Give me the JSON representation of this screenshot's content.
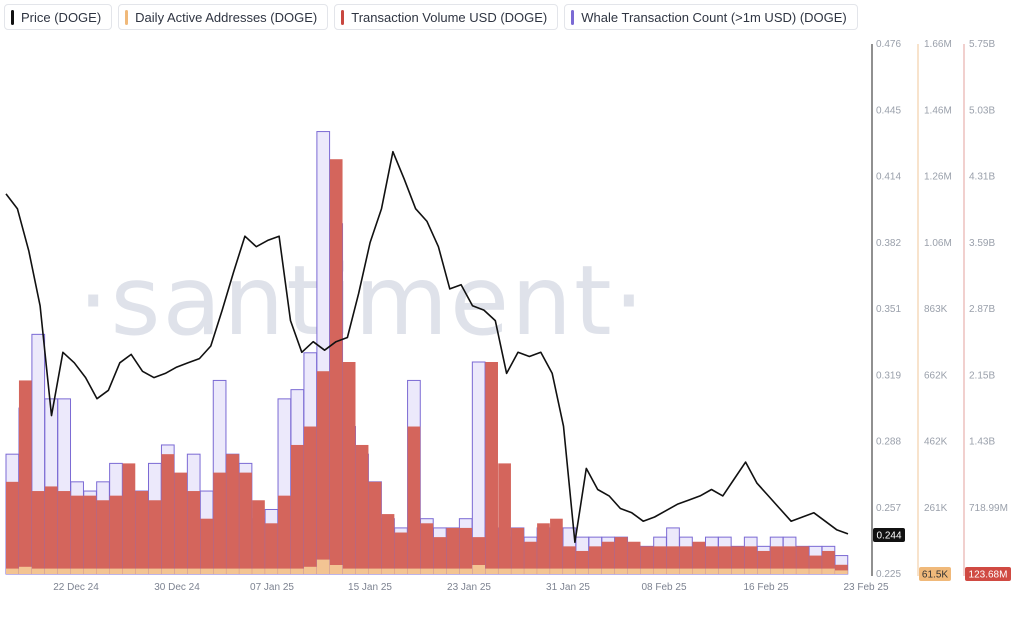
{
  "legend": [
    {
      "label": "Price (DOGE)",
      "color": "#111111"
    },
    {
      "label": "Daily Active Addresses (DOGE)",
      "color": "#f0b97a"
    },
    {
      "label": "Transaction Volume USD (DOGE)",
      "color": "#c8473f"
    },
    {
      "label": "Whale Transaction Count (>1m USD) (DOGE)",
      "color": "#7b6ad4"
    }
  ],
  "watermark": "·santiment·",
  "chart_data": {
    "type": "line",
    "x_ticks": [
      "22 Dec 24",
      "30 Dec 24",
      "07 Jan 25",
      "15 Jan 25",
      "23 Jan 25",
      "31 Jan 25",
      "08 Feb 25",
      "16 Feb 25",
      "23 Feb 25"
    ],
    "price_axis": {
      "ticks": [
        "0.476",
        "0.445",
        "0.414",
        "0.382",
        "0.351",
        "0.319",
        "0.288",
        "0.257",
        "0.225"
      ],
      "ylim": [
        0.225,
        0.476
      ],
      "current": "0.244",
      "color": "#111111"
    },
    "daa_axis": {
      "ticks": [
        "1.66M",
        "1.46M",
        "1.26M",
        "1.06M",
        "863K",
        "662K",
        "462K",
        "261K",
        "61.5K"
      ],
      "current": "61.5K",
      "color": "#e8a35c"
    },
    "volume_axis": {
      "ticks": [
        "5.75B",
        "5.03B",
        "4.31B",
        "3.59B",
        "2.87B",
        "2.15B",
        "1.43B",
        "718.99M",
        "0"
      ],
      "ylim": [
        0,
        5.75
      ],
      "current": "123.68M",
      "color": "#c8473f"
    },
    "price": [
      0.405,
      0.398,
      0.378,
      0.352,
      0.3,
      0.33,
      0.325,
      0.318,
      0.308,
      0.312,
      0.325,
      0.329,
      0.321,
      0.318,
      0.32,
      0.323,
      0.325,
      0.327,
      0.333,
      0.35,
      0.368,
      0.385,
      0.38,
      0.383,
      0.385,
      0.345,
      0.33,
      0.335,
      0.331,
      0.335,
      0.337,
      0.358,
      0.382,
      0.398,
      0.425,
      0.412,
      0.398,
      0.392,
      0.38,
      0.36,
      0.362,
      0.352,
      0.35,
      0.345,
      0.32,
      0.33,
      0.328,
      0.33,
      0.32,
      0.295,
      0.24,
      0.275,
      0.265,
      0.262,
      0.256,
      0.254,
      0.25,
      0.252,
      0.255,
      0.258,
      0.26,
      0.262,
      0.265,
      0.262,
      0.27,
      0.278,
      0.268,
      0.262,
      0.256,
      0.25,
      0.252,
      0.254,
      0.25,
      0.246,
      0.244
    ],
    "volume_billions": [
      1.0,
      2.1,
      0.9,
      0.95,
      0.9,
      0.85,
      0.85,
      0.8,
      0.85,
      1.2,
      0.9,
      0.8,
      1.3,
      1.1,
      0.9,
      0.6,
      1.1,
      1.3,
      1.1,
      0.8,
      0.55,
      0.85,
      1.4,
      1.6,
      2.2,
      4.5,
      2.3,
      1.4,
      1.0,
      0.65,
      0.45,
      1.6,
      0.55,
      0.4,
      0.5,
      0.5,
      0.4,
      2.3,
      1.2,
      0.5,
      0.35,
      0.55,
      0.6,
      0.3,
      0.25,
      0.3,
      0.35,
      0.4,
      0.35,
      0.3,
      0.3,
      0.3,
      0.3,
      0.35,
      0.3,
      0.3,
      0.3,
      0.3,
      0.25,
      0.3,
      0.3,
      0.3,
      0.2,
      0.25,
      0.1
    ],
    "whale_count_scaled": [
      1.3,
      1.8,
      2.6,
      1.9,
      1.9,
      1.0,
      0.9,
      1.0,
      1.2,
      0.9,
      0.9,
      1.2,
      1.4,
      1.0,
      1.3,
      0.9,
      2.1,
      1.3,
      1.2,
      0.6,
      0.7,
      1.9,
      2.0,
      2.4,
      4.8,
      3.8,
      1.6,
      1.3,
      1.0,
      0.6,
      0.5,
      2.1,
      0.6,
      0.5,
      0.5,
      0.6,
      2.3,
      0.5,
      0.4,
      0.5,
      0.4,
      0.5,
      0.5,
      0.5,
      0.4,
      0.4,
      0.4,
      0.4,
      0.3,
      0.3,
      0.4,
      0.5,
      0.4,
      0.3,
      0.4,
      0.4,
      0.3,
      0.4,
      0.3,
      0.4,
      0.4,
      0.3,
      0.3,
      0.3,
      0.2
    ],
    "daa_relative": [
      0.3,
      0.4,
      0.3,
      0.3,
      0.3,
      0.3,
      0.3,
      0.3,
      0.3,
      0.3,
      0.3,
      0.3,
      0.3,
      0.3,
      0.3,
      0.3,
      0.3,
      0.3,
      0.3,
      0.3,
      0.3,
      0.3,
      0.3,
      0.4,
      0.8,
      0.5,
      0.3,
      0.3,
      0.3,
      0.3,
      0.3,
      0.3,
      0.3,
      0.3,
      0.3,
      0.3,
      0.5,
      0.3,
      0.3,
      0.3,
      0.3,
      0.3,
      0.3,
      0.3,
      0.3,
      0.3,
      0.3,
      0.3,
      0.3,
      0.3,
      0.3,
      0.3,
      0.3,
      0.3,
      0.3,
      0.3,
      0.3,
      0.3,
      0.3,
      0.3,
      0.3,
      0.3,
      0.3,
      0.3,
      0.2
    ]
  }
}
